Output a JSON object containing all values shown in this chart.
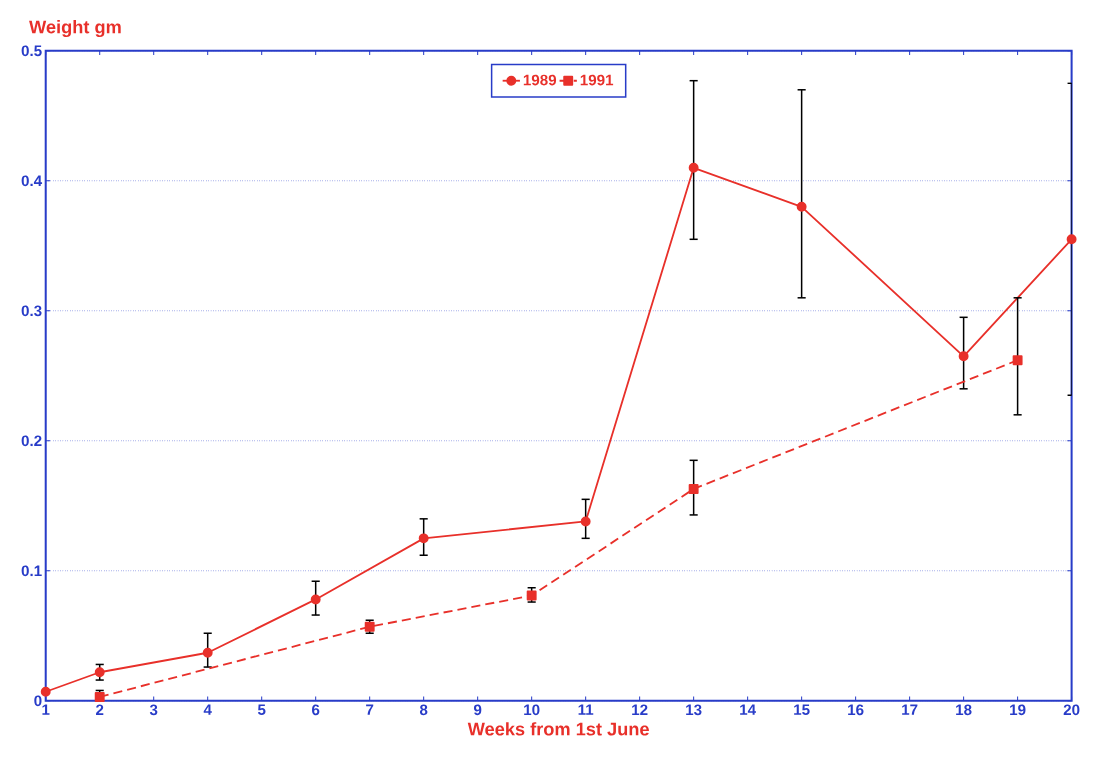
{
  "chart_data": {
    "type": "line",
    "ylabel": "Weight gm",
    "xlabel": "Weeks from 1st June",
    "xlim": [
      1,
      20
    ],
    "xticks": [
      1,
      2,
      3,
      4,
      5,
      6,
      7,
      8,
      9,
      10,
      11,
      12,
      13,
      14,
      15,
      16,
      17,
      18,
      19,
      20
    ],
    "ylim": [
      0,
      0.5
    ],
    "yticks": [
      0,
      0.1,
      0.2,
      0.3,
      0.4,
      0.5
    ],
    "grid": "y",
    "legend": "top",
    "series": [
      {
        "name": "1989",
        "color": "#e8302a",
        "marker": "circle",
        "line_style": "solid",
        "x": [
          1,
          2,
          4,
          6,
          8,
          11,
          13,
          15,
          18,
          20
        ],
        "values": [
          0.007,
          0.022,
          0.037,
          0.078,
          0.125,
          0.138,
          0.41,
          0.38,
          0.265,
          0.355
        ],
        "errors": [
          null,
          [
            0.016,
            0.028
          ],
          [
            0.026,
            0.052
          ],
          [
            0.066,
            0.092
          ],
          [
            0.112,
            0.14
          ],
          [
            0.125,
            0.155
          ],
          [
            0.355,
            0.477
          ],
          [
            0.31,
            0.47
          ],
          [
            0.24,
            0.295
          ],
          [
            0.235,
            0.475
          ]
        ]
      },
      {
        "name": "1991",
        "color": "#e8302a",
        "marker": "square",
        "line_style": "dashed",
        "x": [
          2,
          7,
          10,
          13,
          19
        ],
        "values": [
          0.003,
          0.057,
          0.081,
          0.163,
          0.262
        ],
        "errors": [
          [
            0.0,
            0.008
          ],
          [
            0.052,
            0.062
          ],
          [
            0.076,
            0.087
          ],
          [
            0.143,
            0.185
          ],
          [
            0.22,
            0.31
          ]
        ]
      }
    ]
  }
}
